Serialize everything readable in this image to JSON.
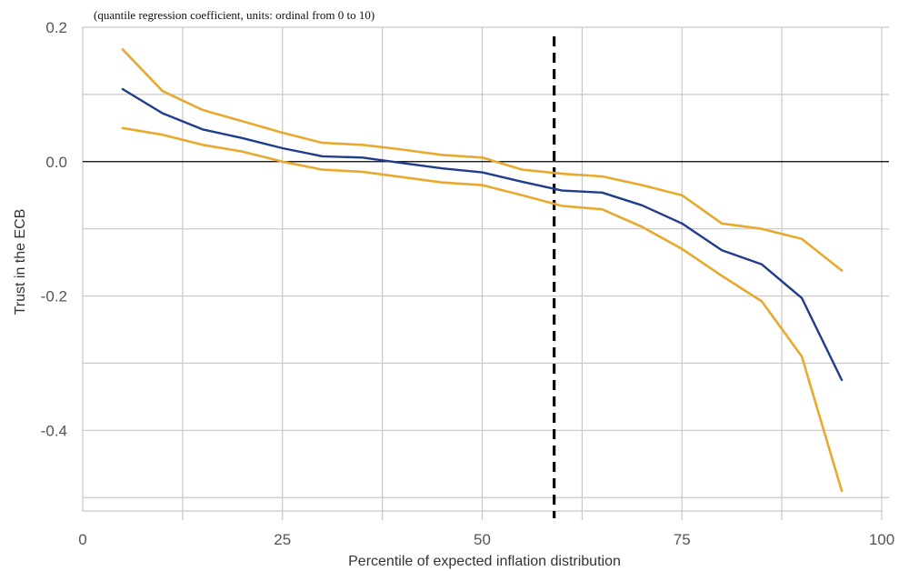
{
  "chart_data": {
    "type": "line",
    "subtitle": "(quantile regression coefficient, units: ordinal from 0 to 10)",
    "xlabel": "Percentile of expected inflation distribution",
    "ylabel": "Trust in the ECB",
    "xlim": [
      0,
      100
    ],
    "ylim": [
      -0.52,
      0.2
    ],
    "xticks": [
      0,
      25,
      50,
      75,
      100
    ],
    "yticks": [
      0.2,
      0.0,
      -0.2,
      -0.4
    ],
    "ytick_labels": [
      "0.2",
      "0.0",
      "-0.2",
      "-0.4"
    ],
    "grid": true,
    "x": [
      5,
      10,
      15,
      20,
      25,
      30,
      35,
      40,
      45,
      50,
      55,
      60,
      65,
      70,
      75,
      80,
      85,
      90,
      95
    ],
    "series": [
      {
        "values": [
          0.108,
          0.072,
          0.048,
          0.035,
          0.02,
          0.008,
          0.006,
          -0.002,
          -0.01,
          -0.016,
          -0.03,
          -0.043,
          -0.046,
          -0.065,
          -0.092,
          -0.132,
          -0.153,
          -0.203,
          -0.325
        ],
        "color": "#1f3c8f"
      },
      {
        "values": [
          0.167,
          0.105,
          0.077,
          0.06,
          0.043,
          0.028,
          0.025,
          0.018,
          0.01,
          0.006,
          -0.012,
          -0.018,
          -0.022,
          -0.035,
          -0.05,
          -0.092,
          -0.1,
          -0.115,
          -0.162
        ],
        "color": "#e8a92e"
      },
      {
        "values": [
          0.05,
          0.04,
          0.025,
          0.015,
          0.0,
          -0.012,
          -0.015,
          -0.023,
          -0.031,
          -0.035,
          -0.05,
          -0.066,
          -0.071,
          -0.097,
          -0.13,
          -0.17,
          -0.208,
          -0.29,
          -0.49
        ],
        "color": "#e8a92e"
      }
    ],
    "vline_x": 59,
    "hline_y": 0.0
  }
}
